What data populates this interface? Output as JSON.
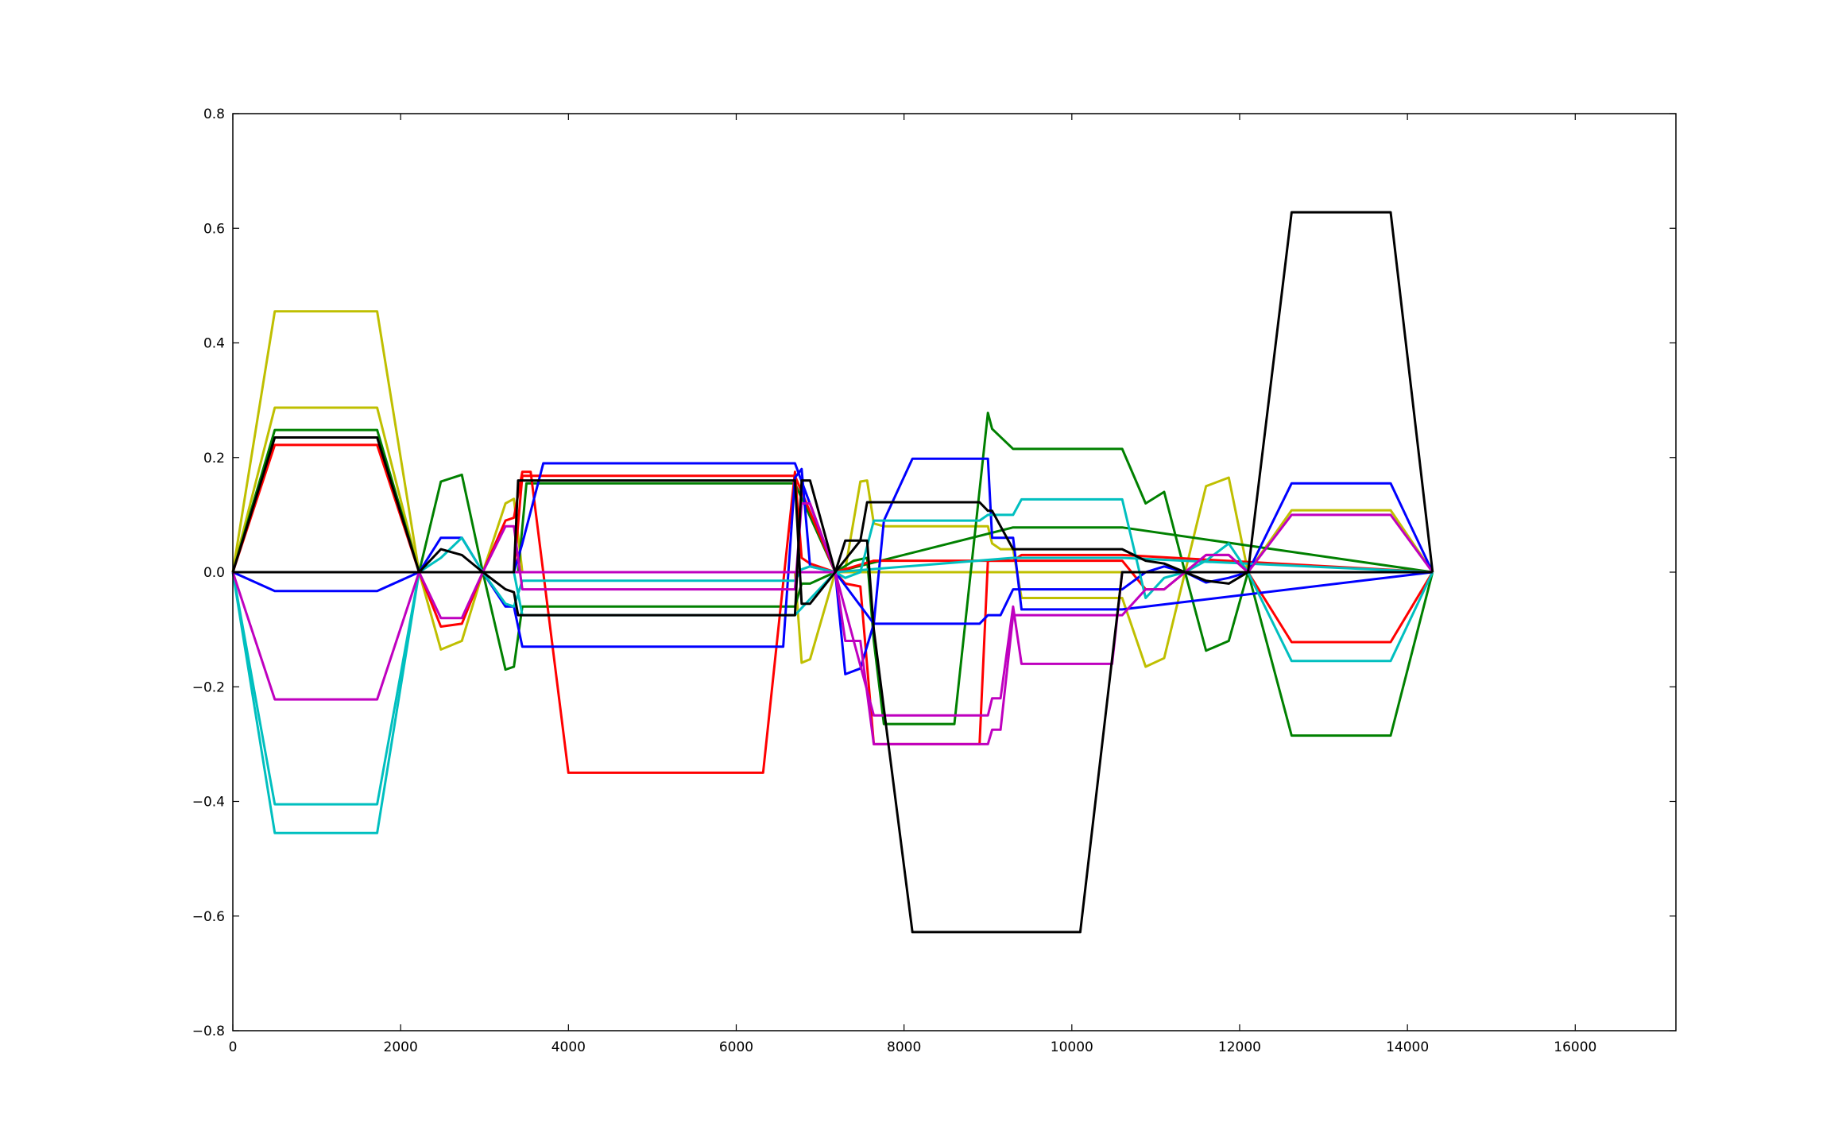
{
  "chart_data": {
    "type": "line",
    "title": "",
    "xlabel": "",
    "ylabel": "",
    "xlim": [
      0,
      17200
    ],
    "ylim": [
      -0.8,
      0.8
    ],
    "xticks": [
      0,
      2000,
      4000,
      6000,
      8000,
      10000,
      12000,
      14000,
      16000
    ],
    "yticks": [
      -0.8,
      -0.6,
      -0.4,
      -0.2,
      0.0,
      0.2,
      0.4,
      0.6,
      0.8
    ],
    "xtick_labels": [
      "0",
      "2000",
      "4000",
      "6000",
      "8000",
      "10000",
      "12000",
      "14000",
      "16000"
    ],
    "ytick_labels": [
      "−0.8",
      "−0.6",
      "−0.4",
      "−0.2",
      "0.0",
      "0.2",
      "0.4",
      "0.6",
      "0.8"
    ],
    "grid": false,
    "legend": "none",
    "series": [
      {
        "color": "#bfbf00",
        "x": [
          0,
          500,
          1720,
          2220,
          2480,
          2730,
          2980,
          3250,
          3350,
          3450,
          3550,
          6700,
          6780,
          6880,
          7180,
          7300,
          7480,
          7560,
          7640,
          7760,
          9000,
          9050,
          9150,
          9300,
          9400,
          10600,
          10880,
          11100,
          11350,
          11600,
          11870,
          12100,
          12620,
          13800,
          14300
        ],
        "y": [
          0,
          0.455,
          0.455,
          0,
          -0.135,
          -0.12,
          0,
          0.12,
          0.128,
          0,
          0,
          0,
          -0.158,
          -0.152,
          0,
          0.005,
          0.158,
          0.16,
          0.085,
          0.08,
          0.08,
          0.05,
          0.04,
          0.04,
          -0.045,
          -0.045,
          -0.165,
          -0.15,
          0,
          0.15,
          0.165,
          0,
          0.108,
          0.108,
          0
        ]
      },
      {
        "color": "#bfbf00",
        "x": [
          0,
          500,
          1720,
          2220,
          2980,
          3350,
          14300
        ],
        "y": [
          0,
          0.287,
          0.287,
          0,
          0,
          0,
          0
        ]
      },
      {
        "color": "#008000",
        "x": [
          0,
          500,
          1720,
          2220,
          2480,
          2730,
          2980,
          3250,
          3350,
          3450,
          3550,
          6700,
          6780,
          6880,
          7180,
          7400,
          7560,
          7640,
          7760,
          8600,
          9000,
          9050,
          9300,
          9400,
          10600,
          10880,
          11100,
          11350,
          11600,
          11870,
          12100,
          12620,
          13800,
          14300
        ],
        "y": [
          0,
          0.248,
          0.248,
          0,
          0.158,
          0.17,
          0,
          -0.17,
          -0.165,
          -0.06,
          -0.06,
          -0.06,
          -0.02,
          -0.02,
          0,
          0.02,
          0.025,
          -0.12,
          -0.265,
          -0.265,
          0.278,
          0.25,
          0.215,
          0.215,
          0.215,
          0.12,
          0.14,
          0,
          -0.137,
          -0.12,
          0,
          -0.285,
          -0.285,
          0
        ]
      },
      {
        "color": "#008000",
        "x": [
          0,
          2980,
          3400,
          3500,
          6560,
          6700,
          7180,
          9300,
          9400,
          10600,
          14300
        ],
        "y": [
          0,
          0,
          0,
          0.155,
          0.155,
          0.155,
          0,
          0.078,
          0.078,
          0.078,
          0
        ]
      },
      {
        "color": "#ff0000",
        "x": [
          0,
          500,
          1720,
          2220,
          2480,
          2730,
          2980,
          3250,
          3350,
          3450,
          3550,
          4000,
          6320,
          6700,
          6780,
          6880,
          7180,
          7300,
          7480,
          7640,
          7760,
          8900,
          9000,
          9050,
          9300,
          9400,
          10600,
          10880,
          11100,
          11350,
          11600,
          11870,
          12100,
          12620,
          13800,
          14300
        ],
        "y": [
          0,
          0.222,
          0.222,
          0,
          -0.095,
          -0.09,
          0,
          0.09,
          0.095,
          0.175,
          0.175,
          -0.35,
          -0.35,
          0.175,
          0.025,
          0.015,
          0,
          -0.02,
          -0.025,
          -0.3,
          -0.3,
          -0.3,
          0.02,
          0.02,
          0.02,
          0.02,
          0.02,
          -0.03,
          -0.03,
          0,
          0.03,
          0.03,
          0,
          -0.122,
          -0.122,
          0
        ]
      },
      {
        "color": "#ff0000",
        "x": [
          0,
          2980,
          3350,
          3450,
          6560,
          6700,
          7180,
          7640,
          9300,
          9400,
          10600,
          14300
        ],
        "y": [
          0,
          0,
          0,
          0.168,
          0.168,
          0.168,
          0,
          0.02,
          0.02,
          0.03,
          0.03,
          0
        ]
      },
      {
        "color": "#0000ff",
        "x": [
          0,
          500,
          1720,
          2220,
          2480,
          2730,
          2980,
          3250,
          3350,
          3450,
          3550,
          6560,
          6700,
          6780,
          6880,
          7180,
          7300,
          7480,
          7640,
          7760,
          8900,
          9000,
          9050,
          9150,
          9300,
          9400,
          10600,
          10880,
          11100,
          11350,
          11600,
          11870,
          12100,
          12620,
          13800,
          14300
        ],
        "y": [
          0,
          -0.033,
          -0.033,
          0,
          0.06,
          0.06,
          0,
          -0.06,
          -0.06,
          -0.13,
          -0.13,
          -0.13,
          0.165,
          0.18,
          0.01,
          0,
          -0.178,
          -0.168,
          -0.09,
          -0.09,
          -0.09,
          -0.075,
          -0.075,
          -0.075,
          -0.03,
          -0.03,
          -0.03,
          0,
          0.01,
          0,
          -0.018,
          -0.01,
          0,
          0.155,
          0.155,
          0
        ]
      },
      {
        "color": "#0000ff",
        "x": [
          0,
          2980,
          3350,
          3450,
          3700,
          6560,
          6700,
          7180,
          7640,
          7760,
          8100,
          8930,
          9000,
          9050,
          9300,
          9400,
          10600,
          14300
        ],
        "y": [
          0,
          0,
          0,
          0.05,
          0.19,
          0.19,
          0.19,
          0,
          -0.09,
          0.09,
          0.198,
          0.198,
          0.198,
          0.06,
          0.06,
          -0.065,
          -0.065,
          0
        ]
      },
      {
        "color": "#00bfbf",
        "x": [
          0,
          500,
          1720,
          2220,
          2480,
          2730,
          2980,
          3250,
          3350,
          3450,
          3550,
          6700,
          6780,
          6880,
          7180,
          7300,
          7480,
          7640,
          7760,
          8900,
          9000,
          9050,
          9300,
          9400,
          10600,
          10880,
          11100,
          11350,
          11600,
          11870,
          12100,
          12620,
          13800,
          14300
        ],
        "y": [
          0,
          -0.405,
          -0.405,
          0,
          0.025,
          0.06,
          0,
          -0.055,
          -0.06,
          -0.015,
          -0.015,
          -0.015,
          0.005,
          0.01,
          0,
          -0.01,
          0,
          0.09,
          0.09,
          0.09,
          0.1,
          0.1,
          0.1,
          0.127,
          0.127,
          -0.045,
          -0.01,
          0,
          0.02,
          0.05,
          0,
          -0.155,
          -0.155,
          0
        ]
      },
      {
        "color": "#00bfbf",
        "x": [
          0,
          500,
          1720,
          2220,
          2980,
          3350,
          3450,
          6700,
          7180,
          9300,
          9400,
          10600,
          14300
        ],
        "y": [
          0,
          -0.455,
          -0.455,
          0,
          0,
          0,
          -0.075,
          -0.075,
          0,
          0.025,
          0.025,
          0.025,
          0
        ]
      },
      {
        "color": "#bf00bf",
        "x": [
          0,
          500,
          1720,
          2220,
          2480,
          2730,
          2980,
          3250,
          3350,
          3450,
          3550,
          6700,
          6780,
          6880,
          7180,
          7300,
          7480,
          7640,
          7760,
          8900,
          9000,
          9050,
          9150,
          9300,
          9400,
          10600,
          10880,
          11100,
          11350,
          11600,
          11870,
          12100,
          12620,
          13800,
          14300
        ],
        "y": [
          0,
          -0.222,
          -0.222,
          0,
          -0.08,
          -0.08,
          0,
          0.08,
          0.08,
          -0.03,
          -0.03,
          -0.03,
          0.12,
          0.12,
          0,
          -0.12,
          -0.12,
          -0.3,
          -0.3,
          -0.3,
          -0.3,
          -0.275,
          -0.275,
          -0.075,
          -0.075,
          -0.075,
          -0.03,
          -0.03,
          0,
          0.03,
          0.03,
          0,
          0.1,
          0.1,
          0
        ]
      },
      {
        "color": "#bf00bf",
        "x": [
          0,
          2980,
          7180,
          7640,
          9000,
          9050,
          9150,
          9300,
          9400,
          10480,
          10600,
          14300
        ],
        "y": [
          0,
          0,
          0,
          -0.25,
          -0.25,
          -0.22,
          -0.22,
          -0.06,
          -0.16,
          -0.16,
          0,
          0
        ]
      },
      {
        "color": "#000000",
        "x": [
          0,
          500,
          1720,
          2220,
          2480,
          2730,
          2980,
          3250,
          3350,
          3400,
          3450,
          6560,
          6700,
          6780,
          6880,
          7180,
          7300,
          7480,
          7560,
          7640,
          7760,
          8900,
          9000,
          9050,
          9300,
          9400,
          10600,
          10880,
          11100,
          11350,
          11600,
          11870,
          12100,
          12620,
          13800,
          14300
        ],
        "y": [
          0,
          0.235,
          0.235,
          0,
          0.04,
          0.03,
          0,
          -0.03,
          -0.035,
          -0.075,
          -0.075,
          -0.075,
          -0.075,
          0.16,
          0.16,
          0,
          0.055,
          0.055,
          0.122,
          0.122,
          0.122,
          0.122,
          0.107,
          0.107,
          0.04,
          0.04,
          0.04,
          0.02,
          0.015,
          0,
          -0.015,
          -0.02,
          0,
          0.628,
          0.628,
          0
        ]
      },
      {
        "color": "#000000",
        "x": [
          0,
          2980,
          3350,
          3400,
          3450,
          6560,
          6700,
          6780,
          6880,
          7180,
          7480,
          7560,
          7640,
          8100,
          10100,
          10600,
          14300
        ],
        "y": [
          0,
          0,
          0,
          0.16,
          0.16,
          0.16,
          0.16,
          -0.055,
          -0.055,
          0,
          0.055,
          0.055,
          -0.1,
          -0.628,
          -0.628,
          0,
          0
        ]
      }
    ]
  }
}
